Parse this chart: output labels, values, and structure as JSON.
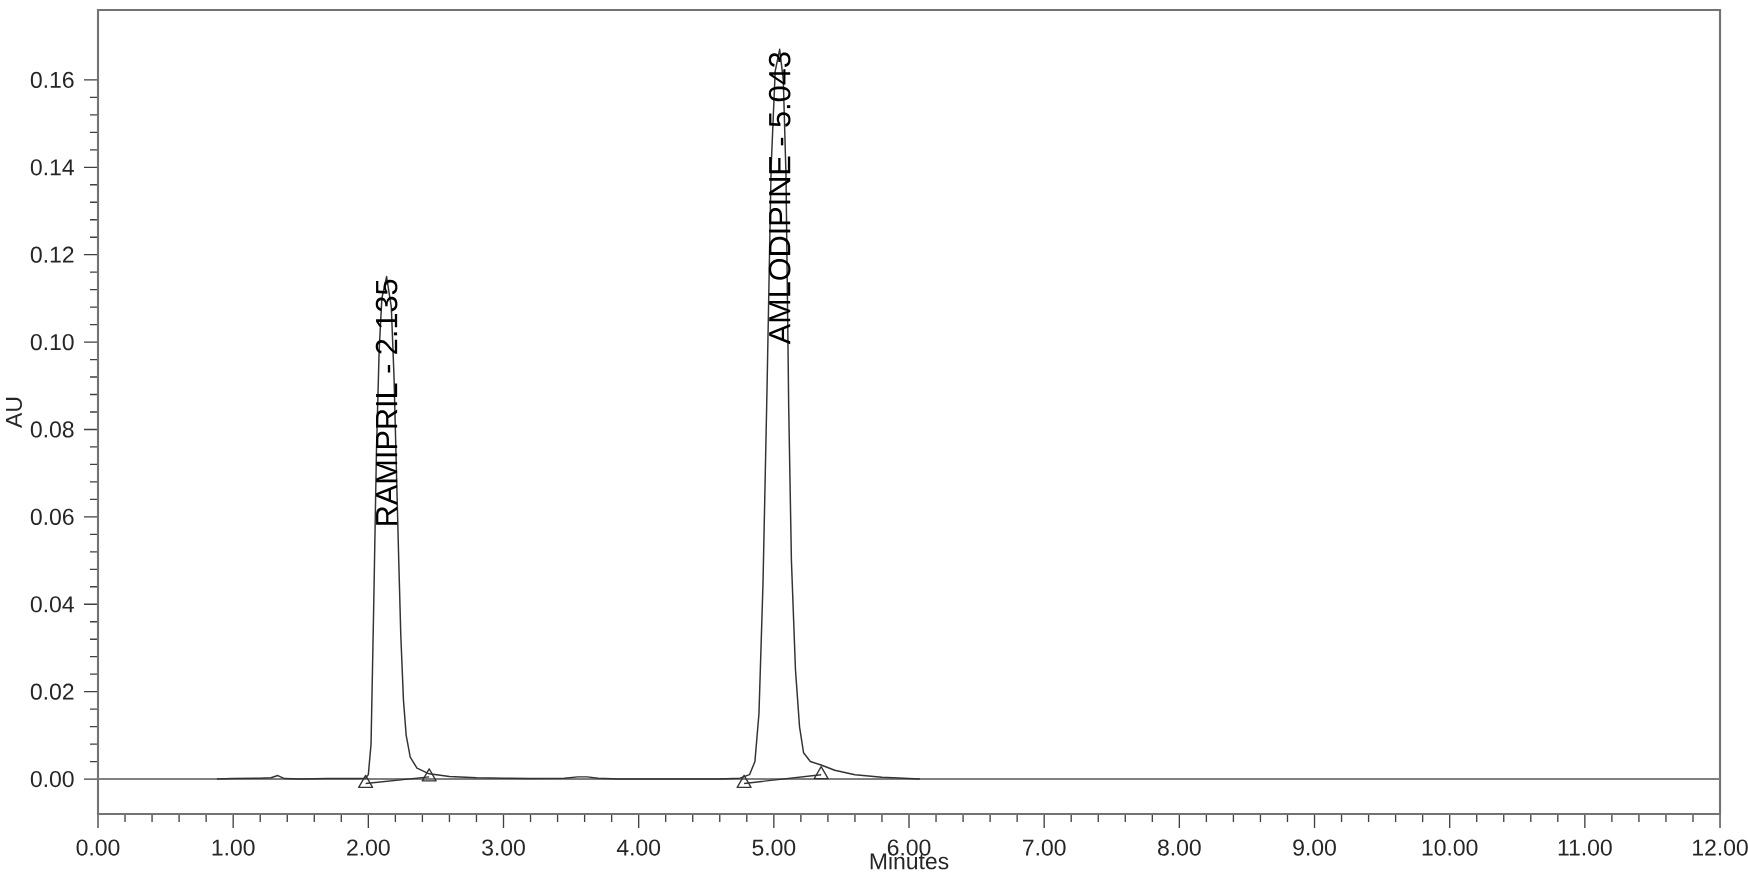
{
  "chart_data": {
    "type": "line",
    "xlabel": "Minutes",
    "ylabel": "AU",
    "series": [
      {
        "color": "#333333",
        "x": [
          0.88,
          1.0,
          1.2,
          1.28,
          1.33,
          1.38,
          1.5,
          1.7,
          1.9,
          1.98,
          2.0,
          2.02,
          2.04,
          2.06,
          2.08,
          2.1,
          2.135,
          2.17,
          2.19,
          2.21,
          2.225,
          2.24,
          2.26,
          2.28,
          2.31,
          2.36,
          2.45,
          2.6,
          2.8,
          3.0,
          3.2,
          3.45,
          3.55,
          3.62,
          3.7,
          3.85,
          4.0,
          4.3,
          4.6,
          4.75,
          4.82,
          4.86,
          4.89,
          4.92,
          4.95,
          4.98,
          5.01,
          5.043,
          5.07,
          5.09,
          5.11,
          5.13,
          5.16,
          5.19,
          5.22,
          5.27,
          5.35,
          5.45,
          5.6,
          5.8,
          6.08
        ],
        "values": [
          0.0,
          0.0001,
          0.0002,
          0.0003,
          0.0008,
          0.0001,
          0.0,
          0.0001,
          0.0001,
          0.0002,
          0.001,
          0.008,
          0.04,
          0.075,
          0.098,
          0.11,
          0.115,
          0.108,
          0.092,
          0.068,
          0.05,
          0.033,
          0.018,
          0.01,
          0.005,
          0.0025,
          0.0012,
          0.0006,
          0.0003,
          0.0002,
          0.0001,
          0.0002,
          0.0005,
          0.0005,
          0.0002,
          0.0,
          0.0,
          0.0,
          0.0,
          0.0002,
          0.001,
          0.004,
          0.015,
          0.045,
          0.09,
          0.14,
          0.162,
          0.167,
          0.16,
          0.138,
          0.085,
          0.05,
          0.025,
          0.012,
          0.006,
          0.004,
          0.0032,
          0.002,
          0.001,
          0.0004,
          0.0
        ]
      },
      {
        "color": "#333333",
        "marker": "triangle",
        "x": [
          1.98,
          2.45,
          3.6,
          4.78,
          5.35
        ],
        "values": [
          -0.001,
          0.0005,
          null,
          -0.001,
          0.001
        ]
      }
    ],
    "xlim": [
      0,
      12
    ],
    "ylim": [
      -0.008,
      0.176
    ],
    "xticks": [
      {
        "value": 0,
        "label": "0.00"
      },
      {
        "value": 1,
        "label": "1.00"
      },
      {
        "value": 2,
        "label": "2.00"
      },
      {
        "value": 3,
        "label": "3.00"
      },
      {
        "value": 4,
        "label": "4.00"
      },
      {
        "value": 5,
        "label": "5.00"
      },
      {
        "value": 6,
        "label": "6.00"
      },
      {
        "value": 7,
        "label": "7.00"
      },
      {
        "value": 8,
        "label": "8.00"
      },
      {
        "value": 9,
        "label": "9.00"
      },
      {
        "value": 10,
        "label": "10.00"
      },
      {
        "value": 11,
        "label": "11.00"
      },
      {
        "value": 12,
        "label": "12.00"
      }
    ],
    "yticks": [
      {
        "value": 0,
        "label": "0.00"
      },
      {
        "value": 0.02,
        "label": "0.02"
      },
      {
        "value": 0.04,
        "label": "0.04"
      },
      {
        "value": 0.06,
        "label": "0.06"
      },
      {
        "value": 0.08,
        "label": "0.08"
      },
      {
        "value": 0.1,
        "label": "0.10"
      },
      {
        "value": 0.12,
        "label": "0.12"
      },
      {
        "value": 0.14,
        "label": "0.14"
      },
      {
        "value": 0.16,
        "label": "0.16"
      }
    ],
    "ref_lines": [
      {
        "axis": "y",
        "value": 0,
        "color": "#808080"
      }
    ],
    "annotations": [
      {
        "text": "RAMIPRIL - 2.135",
        "x": 2.135,
        "y": 0.115
      },
      {
        "text": "AMLODIPINE - 5.043",
        "x": 5.043,
        "y": 0.167
      }
    ]
  }
}
